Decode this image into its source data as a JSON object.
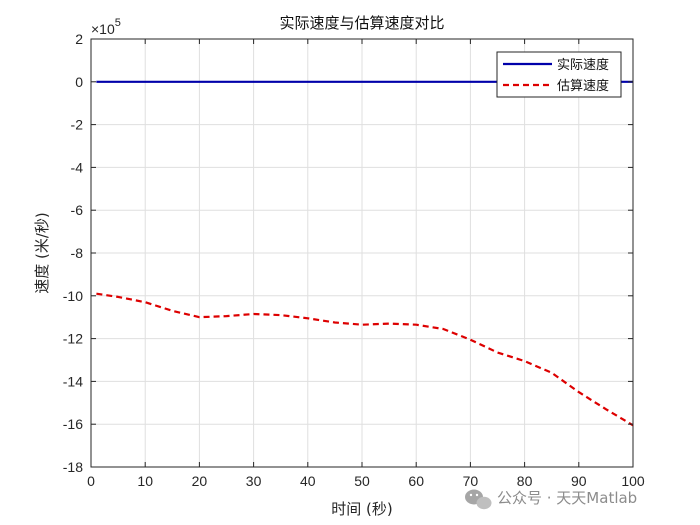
{
  "chart_data": {
    "type": "line",
    "title": "实际速度与估算速度对比",
    "xlabel": "时间 (秒)",
    "ylabel": "速度 (米/秒)",
    "y_multiplier_label": "×10",
    "y_multiplier_exponent": "5",
    "xlim": [
      0,
      100
    ],
    "ylim": [
      -18,
      2
    ],
    "xticks": [
      0,
      10,
      20,
      30,
      40,
      50,
      60,
      70,
      80,
      90,
      100
    ],
    "yticks": [
      2,
      0,
      -2,
      -4,
      -6,
      -8,
      -10,
      -12,
      -14,
      -16,
      -18
    ],
    "grid": true,
    "legend_position": "top-right",
    "series": [
      {
        "name": "实际速度",
        "color": "#0000aa",
        "style": "solid",
        "x": [
          1,
          100
        ],
        "y": [
          0,
          0
        ]
      },
      {
        "name": "估算速度",
        "color": "#dd0000",
        "style": "dashed",
        "x": [
          1,
          5,
          10,
          15,
          20,
          25,
          30,
          35,
          40,
          45,
          50,
          55,
          60,
          65,
          70,
          75,
          80,
          85,
          90,
          95,
          100
        ],
        "y": [
          -9.9,
          -10.05,
          -10.3,
          -10.7,
          -11.0,
          -10.95,
          -10.85,
          -10.9,
          -11.05,
          -11.25,
          -11.35,
          -11.3,
          -11.35,
          -11.55,
          -12.05,
          -12.65,
          -13.05,
          -13.6,
          -14.5,
          -15.3,
          -16.05
        ]
      }
    ]
  },
  "watermark": "公众号 · 天天Matlab"
}
